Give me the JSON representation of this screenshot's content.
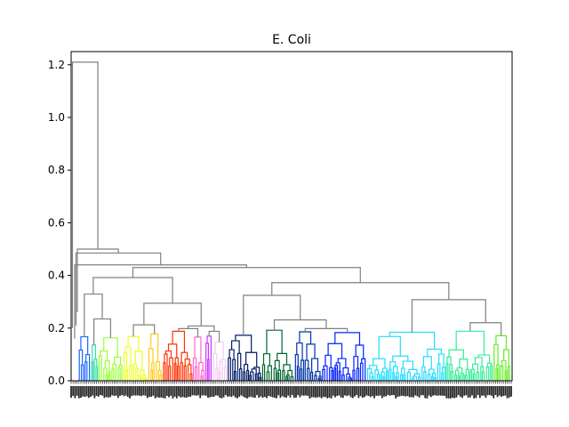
{
  "chart_data": {
    "type": "dendrogram",
    "title": "E. Coli",
    "xlabel": "",
    "ylabel": "",
    "ylim": [
      0.0,
      1.25
    ],
    "yticks": [
      0.0,
      0.2,
      0.4,
      0.6,
      0.8,
      1.0,
      1.2
    ],
    "ytick_labels": [
      "0.0",
      "0.2",
      "0.4",
      "0.6",
      "0.8",
      "1.0",
      "1.2"
    ],
    "grid": false,
    "cut_threshold": 0.2,
    "above_threshold_color": "#808080",
    "root_height": 1.21,
    "top_merges": [
      {
        "height": 1.21
      },
      {
        "height": 0.5
      },
      {
        "height": 0.485
      },
      {
        "height": 0.44
      },
      {
        "height": 0.43
      },
      {
        "height": 0.425
      },
      {
        "height": 0.4
      },
      {
        "height": 0.38
      },
      {
        "height": 0.345
      },
      {
        "height": 0.34
      }
    ],
    "clusters": [
      {
        "color": "#1a66ff",
        "leaf_fraction": 0.025,
        "max_height": 0.18
      },
      {
        "color": "#33ddaa",
        "leaf_fraction": 0.015,
        "max_height": 0.16
      },
      {
        "color": "#99ff33",
        "leaf_fraction": 0.05,
        "max_height": 0.18
      },
      {
        "color": "#eeff22",
        "leaf_fraction": 0.05,
        "max_height": 0.19
      },
      {
        "color": "#ffcc22",
        "leaf_fraction": 0.03,
        "max_height": 0.18
      },
      {
        "color": "#ff3300",
        "leaf_fraction": 0.06,
        "max_height": 0.2
      },
      {
        "color": "#ff66cc",
        "leaf_fraction": 0.025,
        "max_height": 0.18
      },
      {
        "color": "#cc33ff",
        "leaf_fraction": 0.015,
        "max_height": 0.17
      },
      {
        "color": "#f2ccf2",
        "leaf_fraction": 0.03,
        "max_height": 0.17
      },
      {
        "color": "#001a66",
        "leaf_fraction": 0.07,
        "max_height": 0.18
      },
      {
        "color": "#006633",
        "leaf_fraction": 0.065,
        "max_height": 0.2
      },
      {
        "color": "#0033aa",
        "leaf_fraction": 0.055,
        "max_height": 0.19
      },
      {
        "color": "#0022ff",
        "leaf_fraction": 0.09,
        "max_height": 0.19
      },
      {
        "color": "#22ddff",
        "leaf_fraction": 0.16,
        "max_height": 0.19
      },
      {
        "color": "#33ee99",
        "leaf_fraction": 0.095,
        "max_height": 0.19
      },
      {
        "color": "#66ee22",
        "leaf_fraction": 0.035,
        "max_height": 0.18
      }
    ]
  }
}
